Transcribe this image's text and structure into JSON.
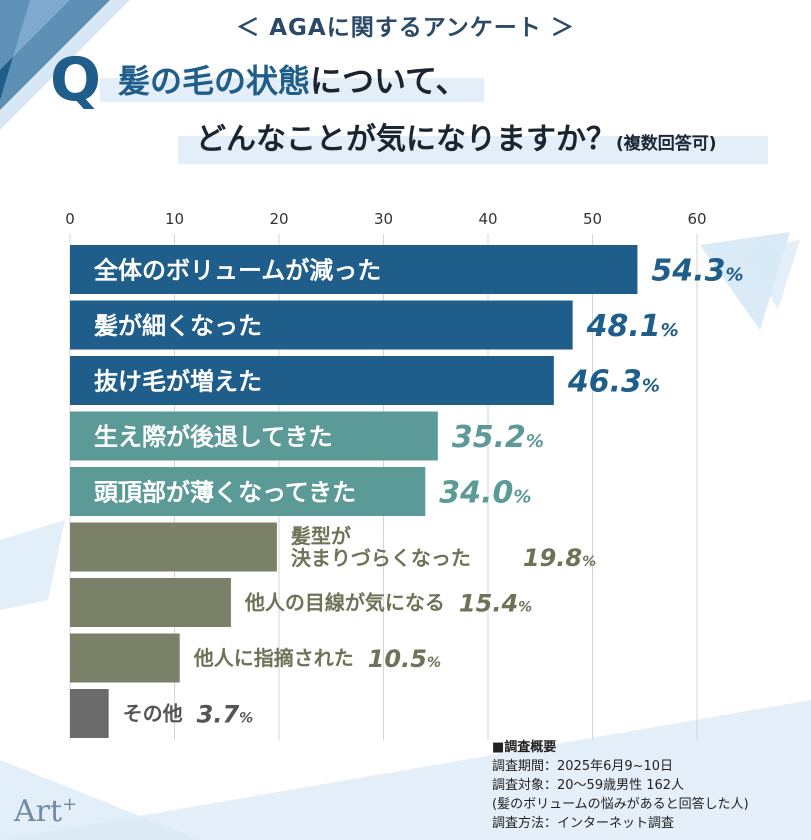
{
  "header": {
    "tag": "＜ AGAに関するアンケート ＞"
  },
  "question": {
    "q_label": "Q",
    "line1_accent": "髪の毛の状態",
    "line1_rest": "について、",
    "line2_main": "どんなことが気になりますか？",
    "line2_note": "(複数回答可)"
  },
  "chart_data": {
    "type": "bar",
    "orientation": "horizontal",
    "xlim": [
      0,
      60
    ],
    "ticks": [
      0,
      10,
      20,
      30,
      40,
      50,
      60
    ],
    "grid": true,
    "categories": [
      "全体のボリュームが減った",
      "髪が細くなった",
      "抜け毛が増えた",
      "生え際が後退してきた",
      "頭頂部が薄くなってきた",
      "髪型が\n決まりづらくなった",
      "他人の目線が気になる",
      "他人に指摘された",
      "その他"
    ],
    "values": [
      54.3,
      48.1,
      46.3,
      35.2,
      34.0,
      19.8,
      15.4,
      10.5,
      3.7
    ],
    "value_labels": [
      "54.3",
      "48.1",
      "46.3",
      "35.2",
      "34.0",
      "19.8",
      "15.4",
      "10.5",
      "3.7"
    ],
    "unit": "%",
    "colors": [
      "#1f5d8a",
      "#1f5d8a",
      "#1f5d8a",
      "#5c9a98",
      "#5c9a98",
      "#7b8068",
      "#7b8068",
      "#7b8068",
      "#6b6b6b"
    ]
  },
  "survey": {
    "title": "■調査概要",
    "period": "調査期間：2025年6月9~10日",
    "target": "調査対象：20～59歳男性 162人",
    "target_note": "(髪のボリュームの悩みがあると回答した人)",
    "method": "調査方法：インターネット調査"
  },
  "brand": {
    "name": "Art",
    "mark": "+"
  }
}
